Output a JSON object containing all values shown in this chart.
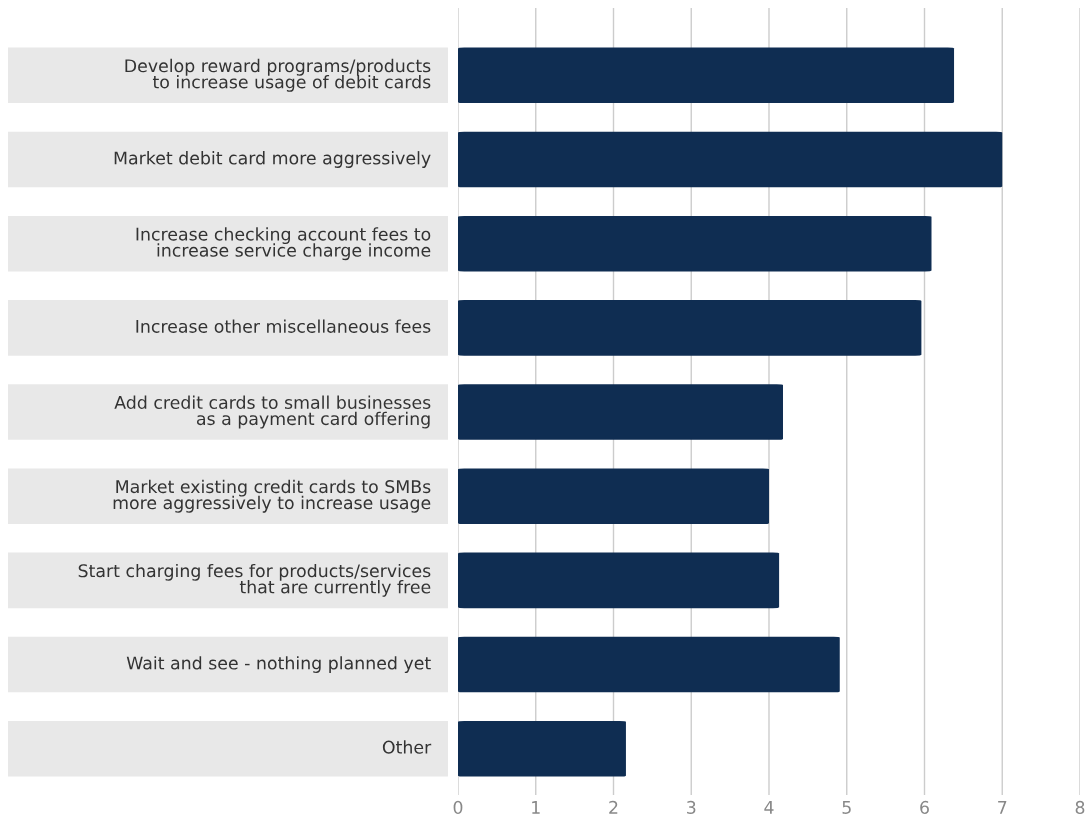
{
  "chart_data": {
    "type": "bar",
    "orientation": "horizontal",
    "categories": [
      "Develop reward programs/products\nto increase usage of debit cards",
      "Market debit card more aggressively",
      "Increase checking account fees to\nincrease service charge income",
      "Increase other miscellaneous fees",
      "Add credit cards to small businesses\nas a payment card offering",
      "Market existing credit cards to SMBs\nmore aggressively to increase usage",
      "Start charging fees for products/services\nthat are currently free",
      "Wait and see - nothing planned yet",
      "Other"
    ],
    "values": [
      6.38,
      7.0,
      6.09,
      5.96,
      4.18,
      4.0,
      4.13,
      4.91,
      2.16
    ],
    "color": "#0f2d52",
    "xlim": [
      0,
      8
    ],
    "xticks": [
      0,
      1,
      2,
      3,
      4,
      5,
      6,
      7,
      8
    ],
    "grid": "x"
  }
}
